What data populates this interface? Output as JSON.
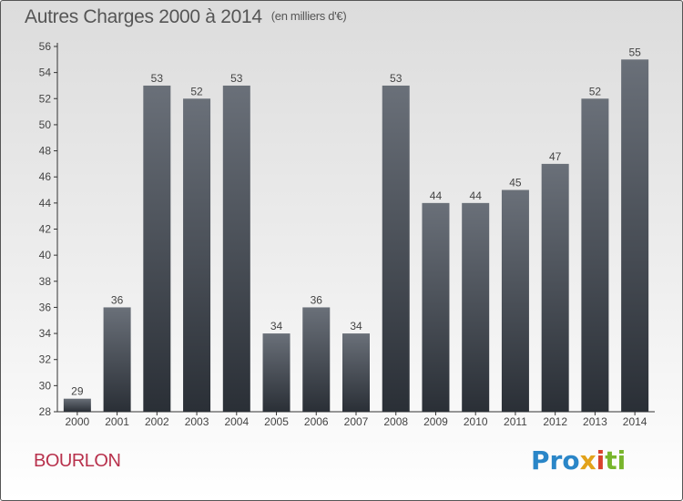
{
  "title": {
    "main": "Autres Charges 2000 à 2014",
    "sub": "(en milliers d'€)"
  },
  "commune": "BOURLON",
  "logo": {
    "p1": "Pro",
    "p2": "x",
    "p3": "i",
    "p4": "ti"
  },
  "colors": {
    "bar_top": "#6a7079",
    "bar_bottom": "#2a2f36",
    "commune": "#b8314c"
  },
  "chart_data": {
    "type": "bar",
    "title": "Autres Charges 2000 à 2014",
    "subtitle": "(en milliers d'€)",
    "categories": [
      "2000",
      "2001",
      "2002",
      "2003",
      "2004",
      "2005",
      "2006",
      "2007",
      "2008",
      "2009",
      "2010",
      "2011",
      "2012",
      "2013",
      "2014"
    ],
    "values": [
      29,
      36,
      53,
      52,
      53,
      34,
      36,
      34,
      53,
      44,
      44,
      45,
      47,
      52,
      55
    ],
    "ylim": [
      28,
      56
    ],
    "yticks": [
      28,
      30,
      32,
      34,
      36,
      38,
      40,
      42,
      44,
      46,
      48,
      50,
      52,
      54,
      56
    ],
    "grid": false,
    "data_labels": true
  }
}
